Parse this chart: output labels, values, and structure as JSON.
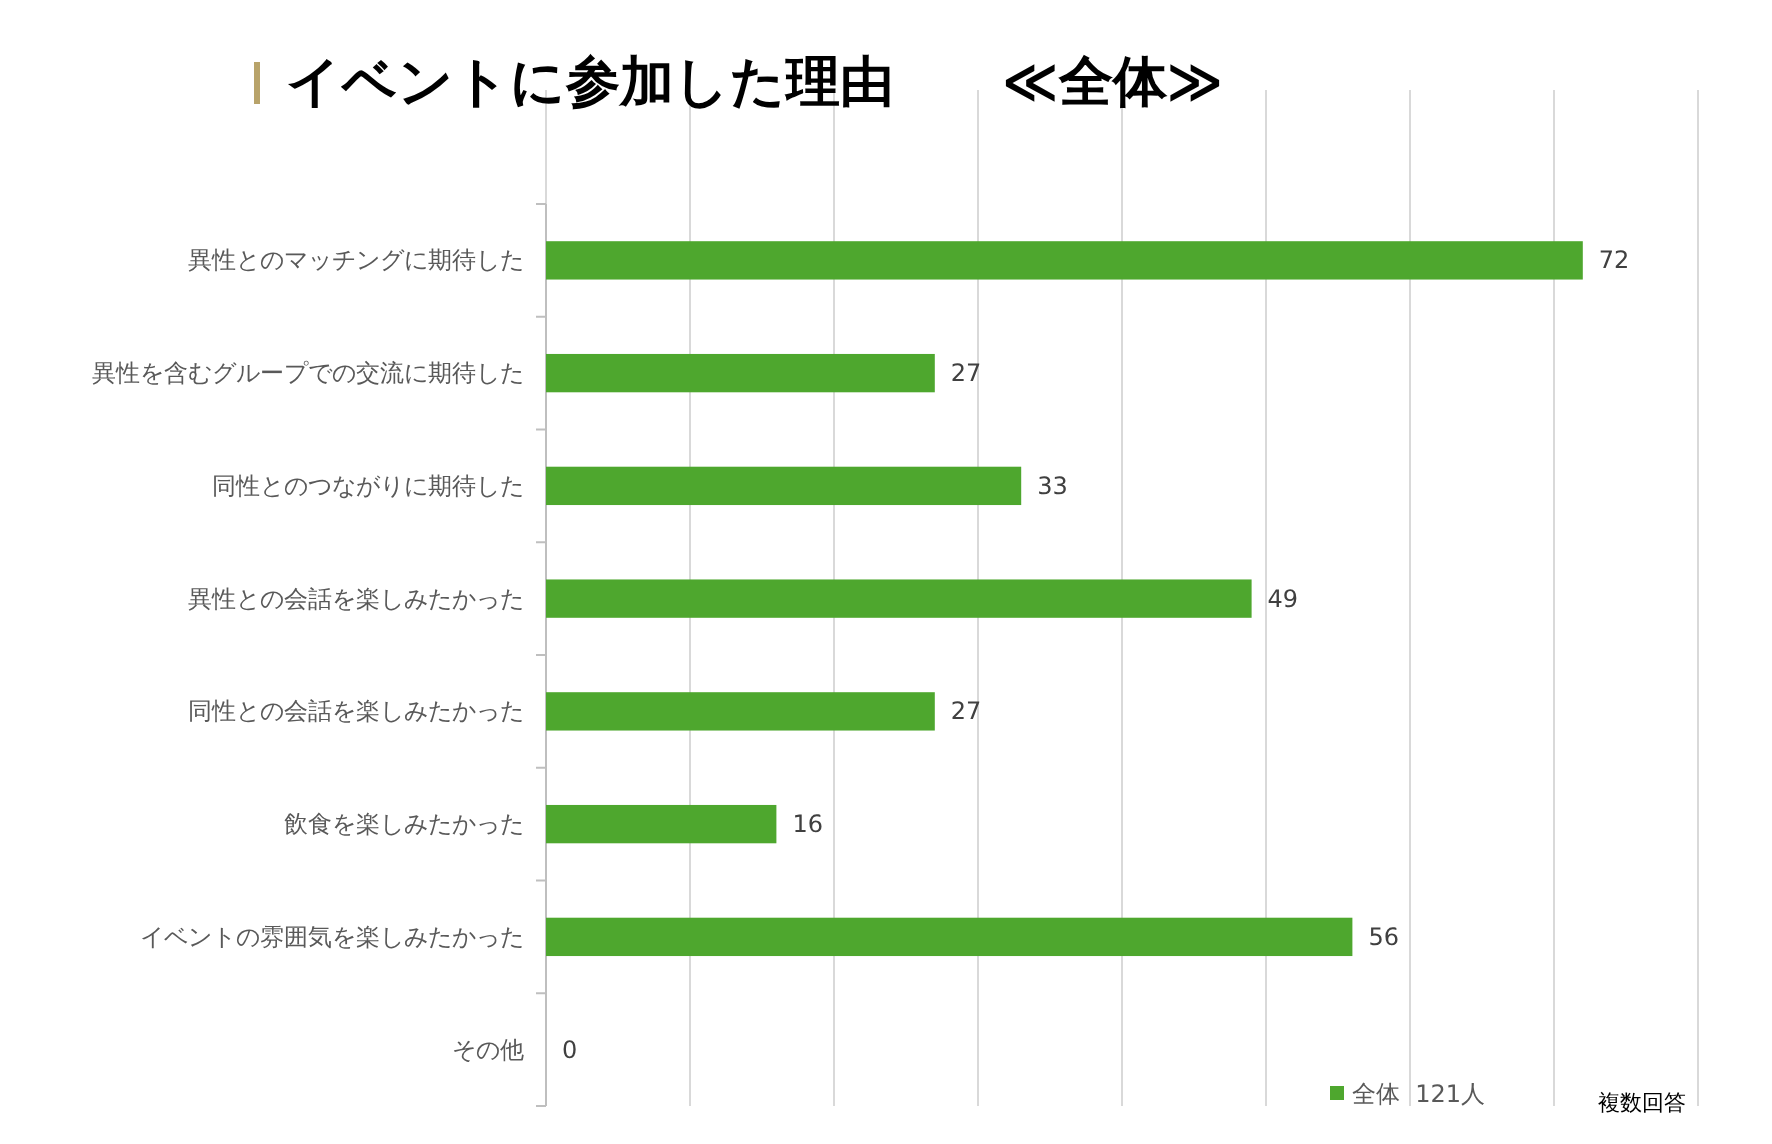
{
  "chart_data": {
    "type": "bar",
    "orientation": "horizontal",
    "title": "イベントに参加した理由　　≪全体≫",
    "categories": [
      "異性とのマッチングに期待した",
      "異性を含むグループでの交流に期待した",
      "同性とのつながりに期待した",
      "異性との会話を楽しみたかった",
      "同性との会話を楽しみたかった",
      "飲食を楽しみたかった",
      "イベントの雰囲気を楽しみたかった",
      "その他"
    ],
    "series": [
      {
        "name": "全体  121人",
        "color": "#4ea72e",
        "values": [
          72,
          27,
          33,
          49,
          27,
          16,
          56,
          0
        ]
      }
    ],
    "xlim": [
      0,
      80
    ],
    "xticks": [
      {
        "value": 0,
        "label": null
      },
      {
        "value": 10,
        "label": null
      },
      {
        "value": 20,
        "label": null
      },
      {
        "value": 30,
        "label": null
      },
      {
        "value": 40,
        "label": null
      },
      {
        "value": 50,
        "label": null
      },
      {
        "value": 60,
        "label": null
      },
      {
        "value": 70,
        "label": null
      },
      {
        "value": 80,
        "label": null
      }
    ],
    "grid": "x",
    "tick_labels": "y",
    "data_labels": true,
    "legend": "bottom right",
    "annotations": [
      "複数回答"
    ]
  }
}
